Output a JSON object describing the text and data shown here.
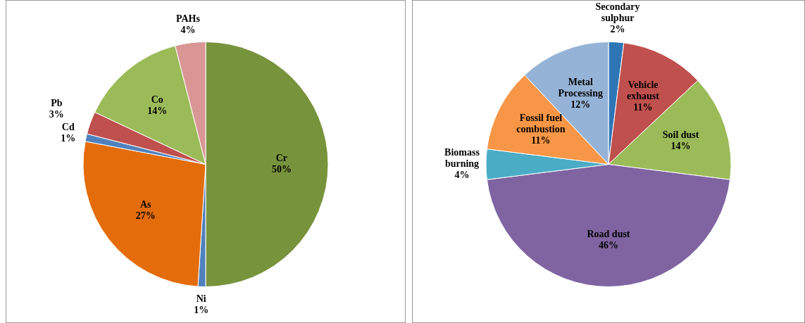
{
  "chart_data": [
    {
      "type": "pie",
      "categories": [
        "Cr",
        "Ni",
        "As",
        "Cd",
        "Pb",
        "Co",
        "PAHs"
      ],
      "values": [
        50,
        1,
        27,
        1,
        3,
        14,
        4
      ],
      "colors": [
        "#77933c",
        "#4f81bd",
        "#e46c0a",
        "#4f81bd",
        "#c0504d",
        "#9bbb59",
        "#d99694"
      ],
      "value_labels": [
        "50%",
        "1%",
        "27%",
        "1%",
        "3%",
        "14%",
        "4%"
      ],
      "legend": false
    },
    {
      "type": "pie",
      "categories": [
        "Secondary sulphur",
        "Vehicle exhaust",
        "Soil dust",
        "Road dust",
        "Biomass burning",
        "Fossil fuel combustion",
        "Metal Processing"
      ],
      "values": [
        2,
        11,
        14,
        46,
        4,
        11,
        12
      ],
      "colors": [
        "#2e75b6",
        "#c0504d",
        "#9bbb59",
        "#8064a2",
        "#4bacc6",
        "#f79646",
        "#95b3d7"
      ],
      "value_labels": [
        "2%",
        "11%",
        "14%",
        "46%",
        "4%",
        "11%",
        "12%"
      ],
      "legend": false
    }
  ]
}
